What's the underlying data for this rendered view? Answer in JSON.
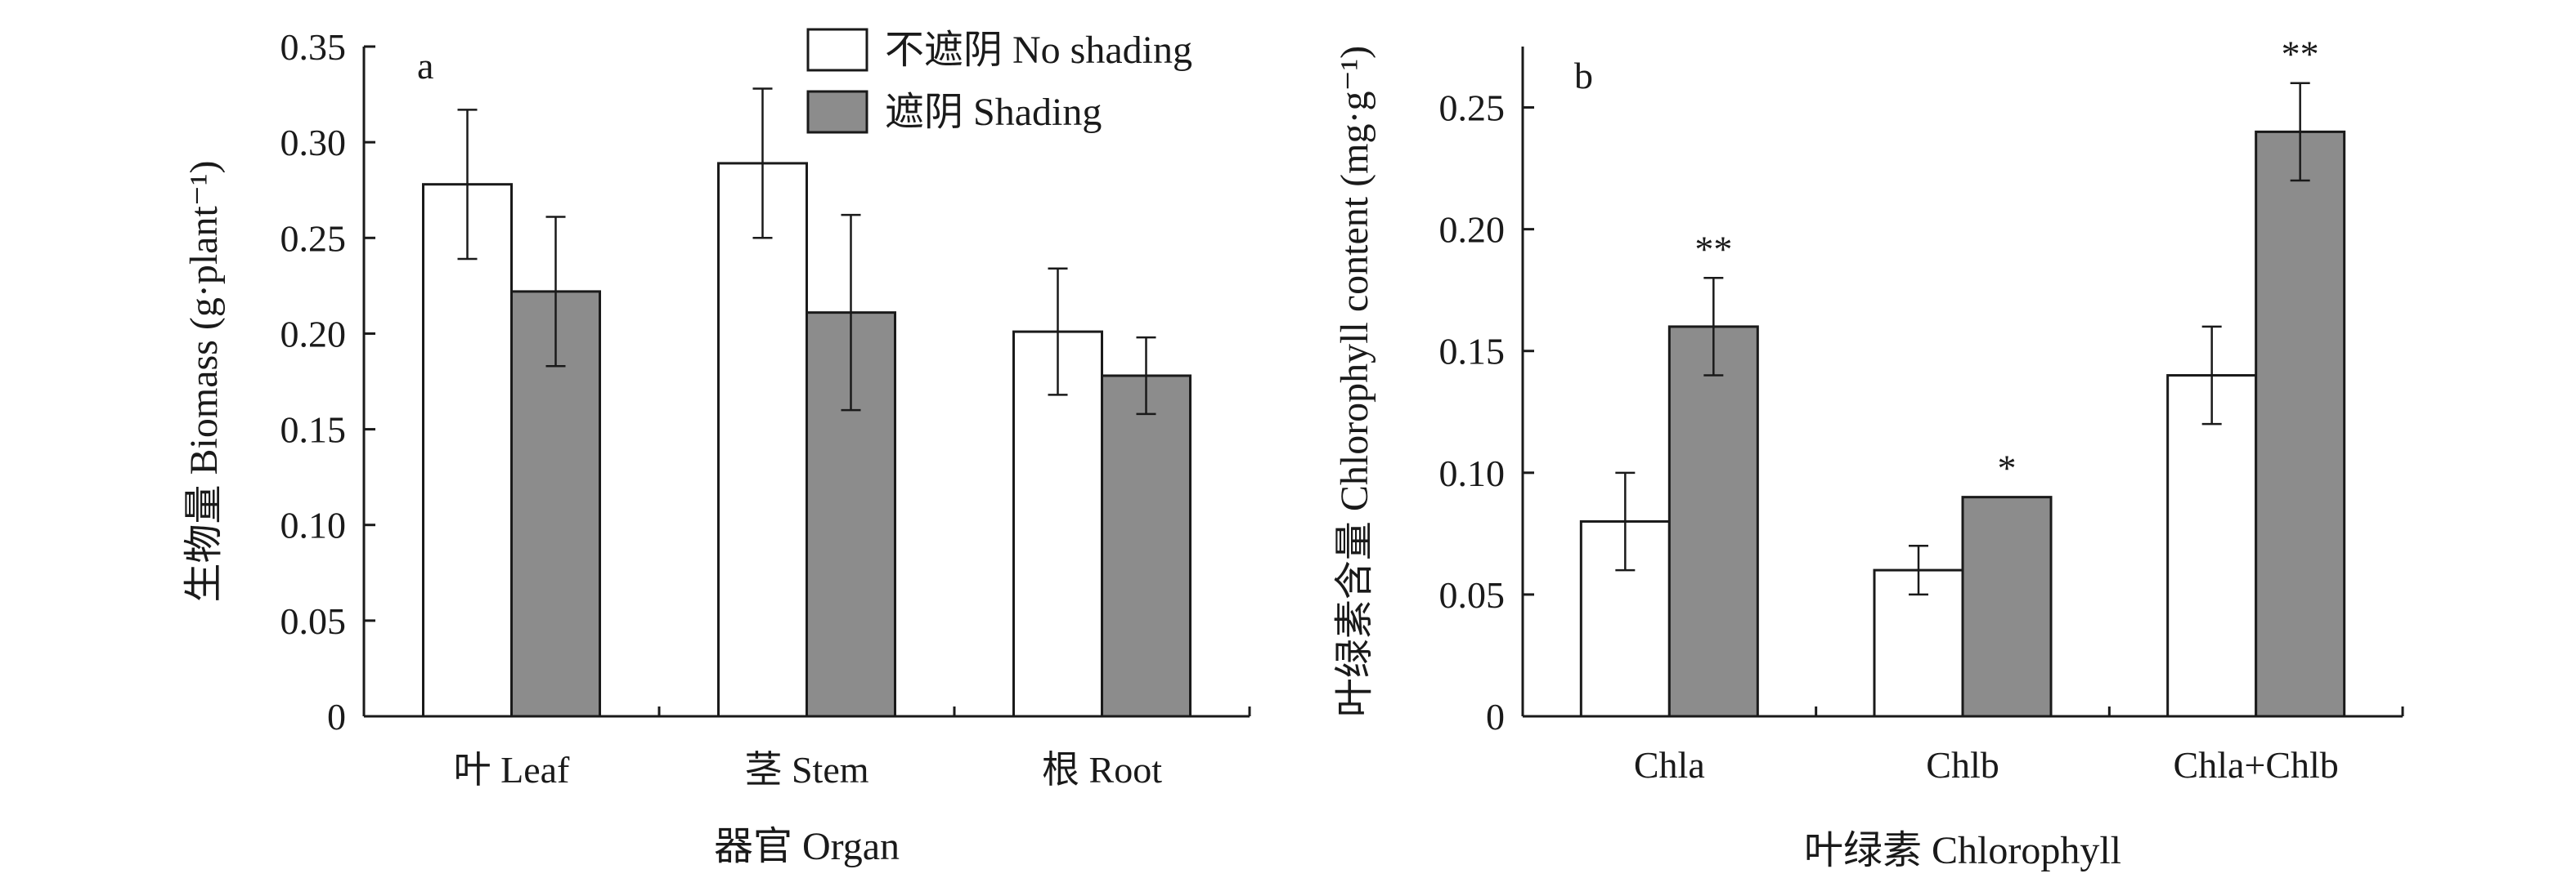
{
  "legend": {
    "items": [
      {
        "label": "不遮阴 No shading",
        "color": "#ffffff"
      },
      {
        "label": "遮阴 Shading",
        "color": "#8c8c8c"
      }
    ]
  },
  "chart_data": [
    {
      "type": "bar",
      "panel_label": "a",
      "categories": [
        "叶 Leaf",
        "茎 Stem",
        "根 Root"
      ],
      "xlabel": "器官 Organ",
      "ylabel": "生物量 Biomass (g·plant⁻¹)",
      "ylim": [
        0,
        0.35
      ],
      "yticks": [
        "0",
        "0.05",
        "0.10",
        "0.15",
        "0.20",
        "0.25",
        "0.30",
        "0.35"
      ],
      "series": [
        {
          "name": "不遮阴 No shading",
          "color": "#ffffff",
          "values": [
            0.278,
            0.289,
            0.201
          ],
          "errors": [
            0.039,
            0.039,
            0.033
          ]
        },
        {
          "name": "遮阴 Shading",
          "color": "#8c8c8c",
          "values": [
            0.222,
            0.211,
            0.178
          ],
          "errors": [
            0.039,
            0.051,
            0.02
          ]
        }
      ],
      "significance": [
        "",
        "",
        ""
      ],
      "legend_position": "top-right",
      "grid": false
    },
    {
      "type": "bar",
      "panel_label": "b",
      "categories": [
        "Chla",
        "Chlb",
        "Chla+Chlb"
      ],
      "xlabel": "叶绿素 Chlorophyll",
      "ylabel": "叶绿素含量 Chlorophyll content (mg·g⁻¹)",
      "ylim": [
        0,
        0.275
      ],
      "yticks": [
        "0",
        "0.05",
        "0.10",
        "0.15",
        "0.20",
        "0.25"
      ],
      "series": [
        {
          "name": "不遮阴 No shading",
          "color": "#ffffff",
          "values": [
            0.08,
            0.06,
            0.14
          ],
          "errors": [
            0.02,
            0.01,
            0.02
          ]
        },
        {
          "name": "遮阴 Shading",
          "color": "#8c8c8c",
          "values": [
            0.16,
            0.09,
            0.24
          ],
          "errors": [
            0.02,
            0,
            0.02
          ]
        }
      ],
      "significance": [
        "**",
        "*",
        "**"
      ],
      "grid": false
    }
  ]
}
